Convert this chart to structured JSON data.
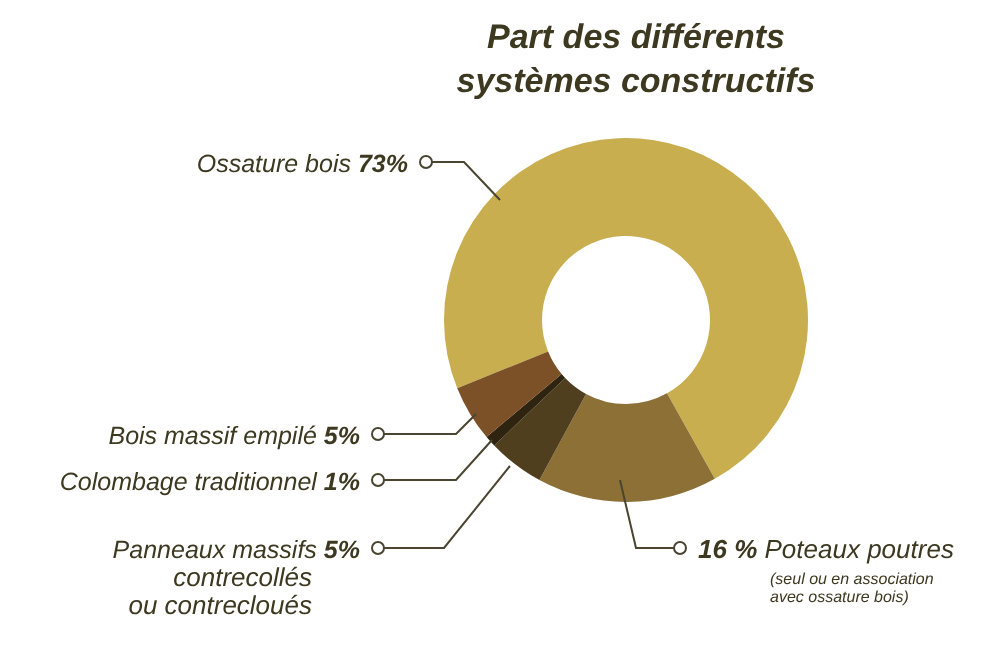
{
  "chart_data": {
    "type": "donut",
    "title": "Part des différents systèmes constructifs",
    "categories": [
      "Ossature bois",
      "Poteaux poutres",
      "Panneaux massifs\ncontrecollés\nou contrecloués",
      "Colombage traditionnel",
      "Bois massif empilé"
    ],
    "values": [
      73,
      16,
      5,
      1,
      5
    ],
    "value_labels": [
      "73%",
      "16 %",
      "5%",
      "1%",
      "5%"
    ],
    "colors": [
      "#c9ae4f",
      "#8c7036",
      "#4f3f1e",
      "#2e2410",
      "#7d5128"
    ],
    "annotations": [
      "(seul ou en association avec ossature bois)"
    ]
  }
}
